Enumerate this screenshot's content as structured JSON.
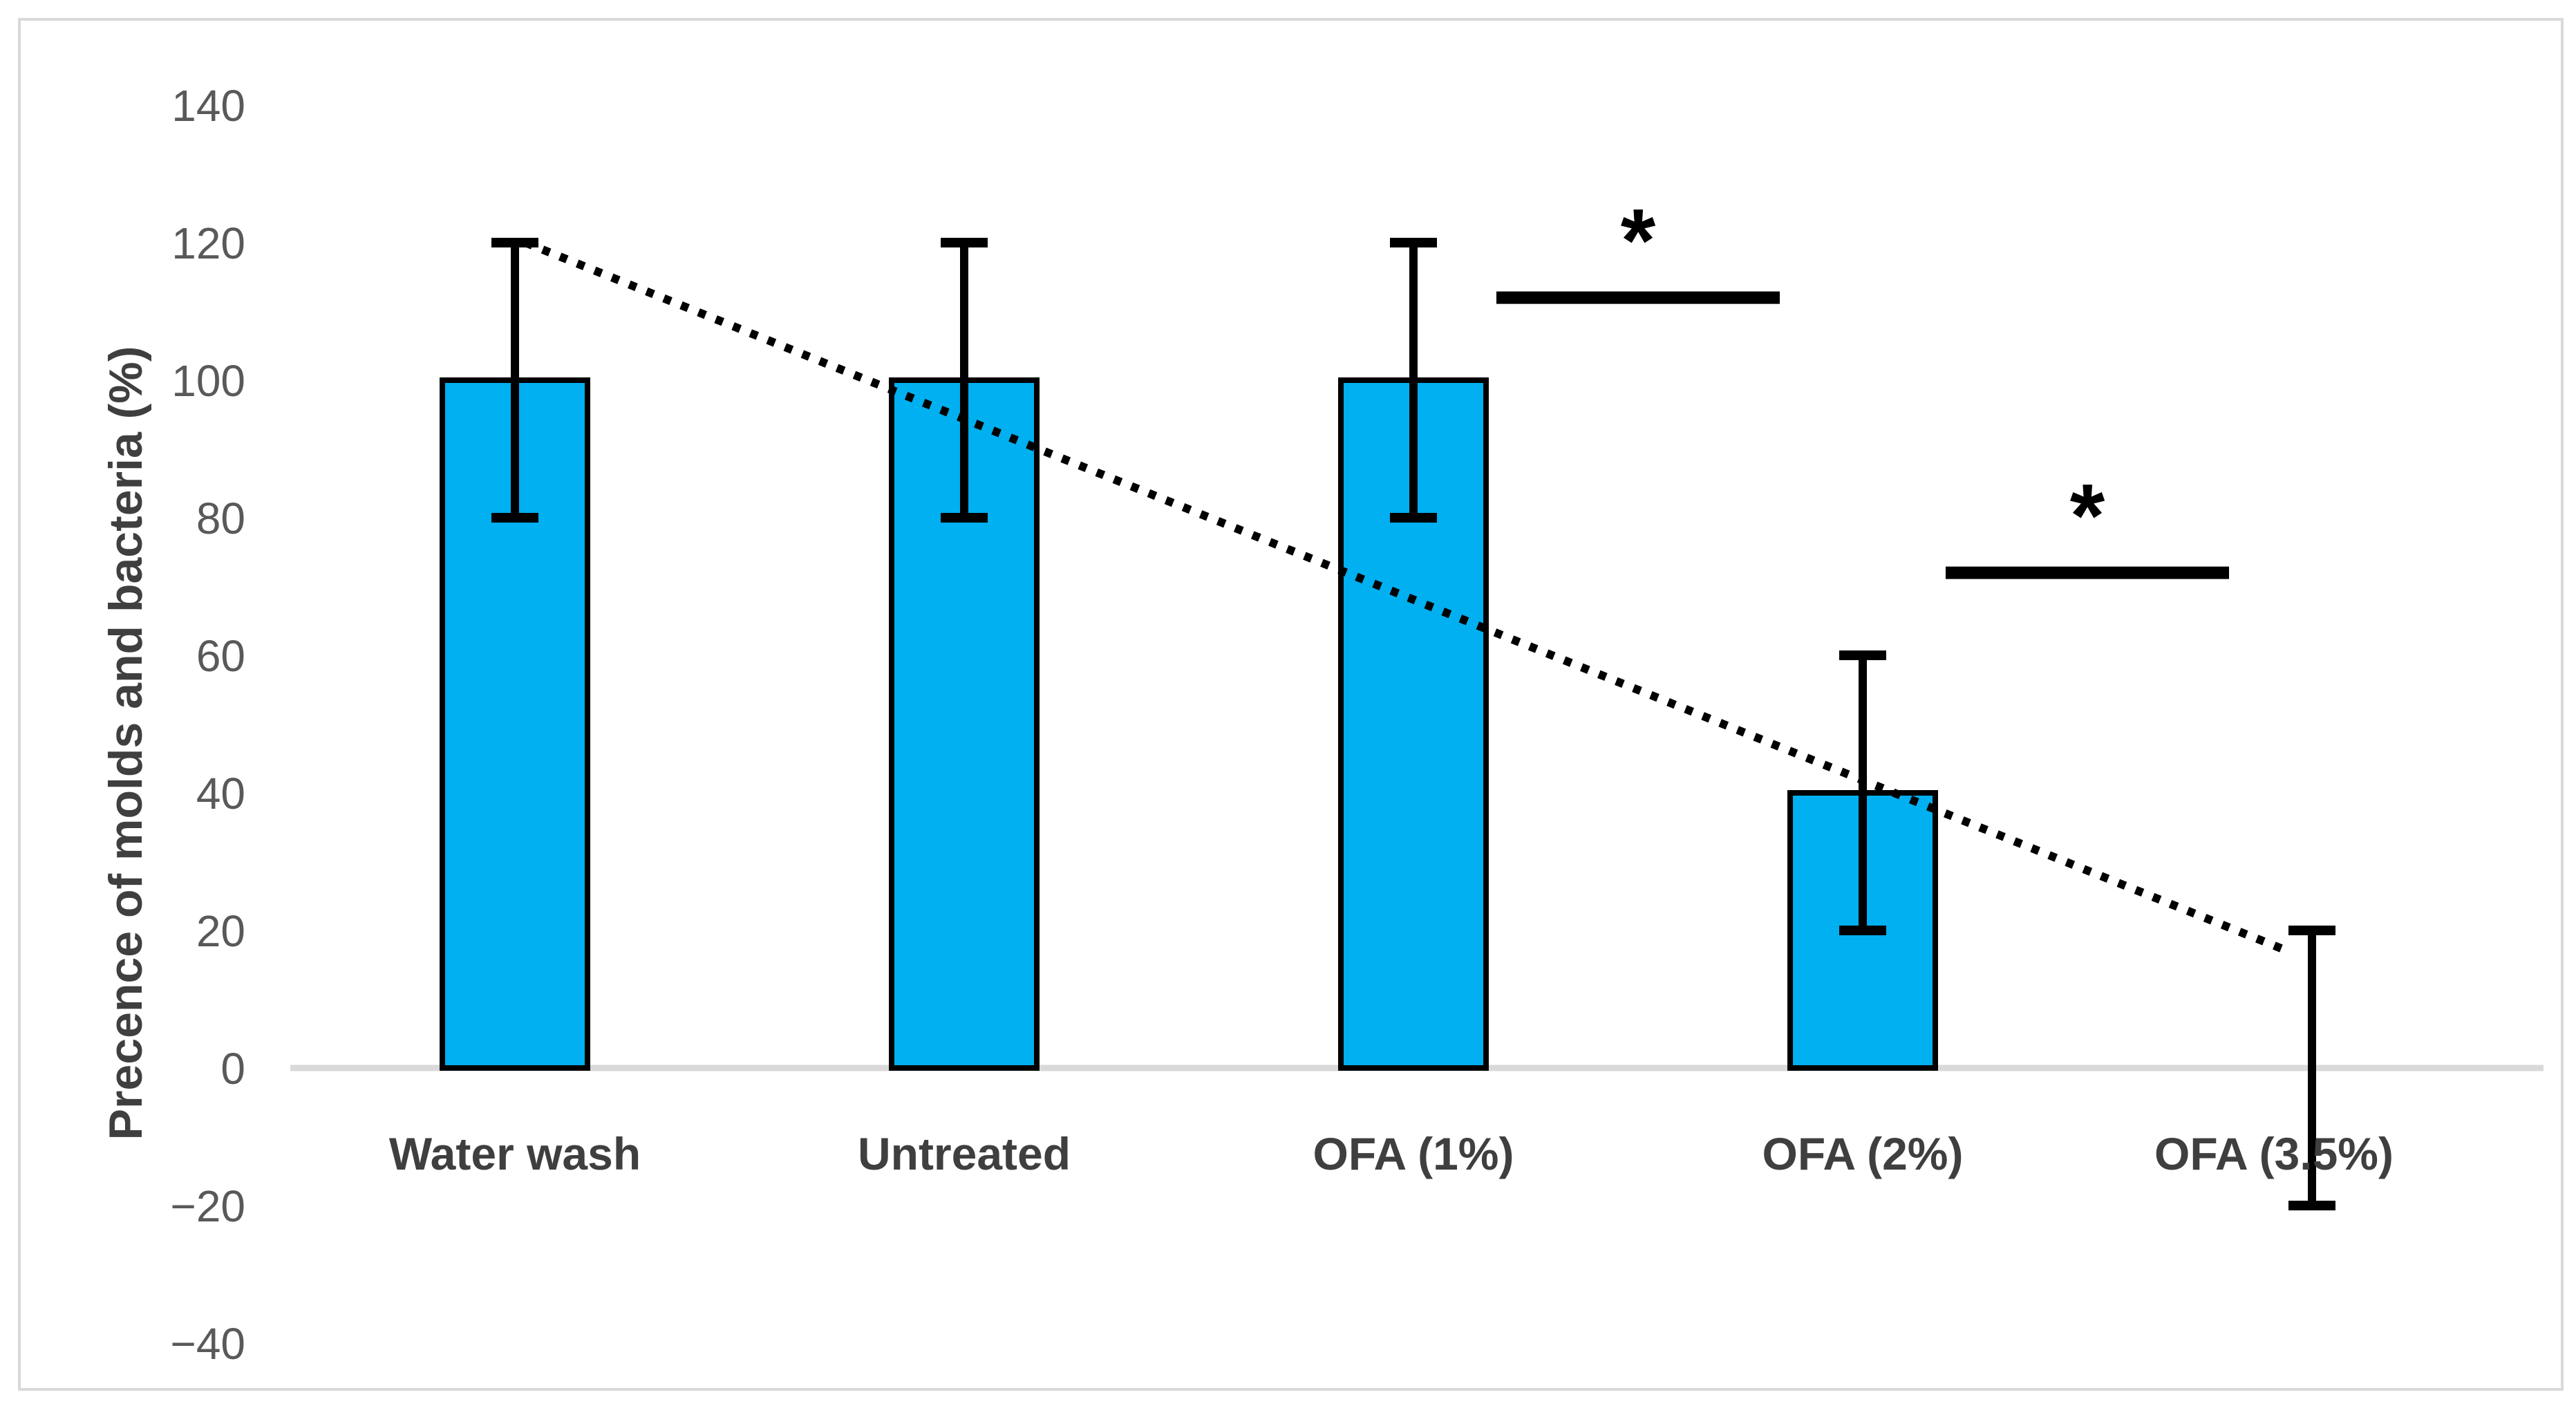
{
  "chart_data": {
    "type": "bar",
    "title": "",
    "xlabel": "",
    "ylabel": "Precence of molds and bacteria (%)",
    "categories": [
      "Water wash",
      "Untreated",
      "OFA (1%)",
      "OFA (2%)",
      "OFA  (3.5%)"
    ],
    "values": [
      100,
      100,
      100,
      40,
      0
    ],
    "error_bars": [
      20,
      20,
      20,
      20,
      20
    ],
    "yticks": [
      140,
      120,
      100,
      80,
      60,
      40,
      20,
      0,
      -20,
      -40
    ],
    "ylim": [
      -40,
      140
    ],
    "grid": false,
    "legend_position": "none",
    "bar_color": "#00B0F0",
    "bar_border_color": "#000000",
    "error_bar_color": "#000000",
    "axis_line_color": "#D9D9D9",
    "frame_border_color": "#D9D9D9",
    "tick_label_color": "#595959",
    "category_label_color": "#3F3F3F",
    "axis_title_color": "#3F3F3F",
    "trendline": {
      "style": "dotted",
      "color": "#000000",
      "start_x_index": 0,
      "start_value": 120,
      "end_x_index": 4,
      "end_value": 17
    },
    "significance_markers": [
      {
        "between_indices": [
          2,
          3
        ],
        "label": "*",
        "line_value": 112
      },
      {
        "between_indices": [
          3,
          4
        ],
        "label": "*",
        "line_value": 72
      }
    ]
  }
}
